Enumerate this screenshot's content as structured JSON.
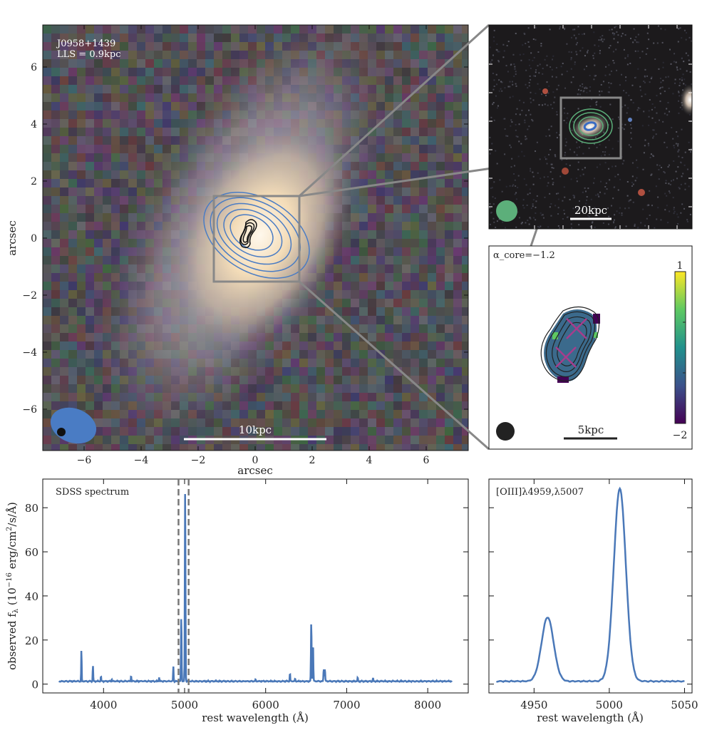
{
  "chart_data": [
    {
      "type": "image",
      "name": "optical-image",
      "annotations": [
        "J0958+1439",
        "LLS = 0.9kpc"
      ],
      "scalebar_label": "10kpc",
      "xlabel": "arcsec",
      "ylabel": "arcsec",
      "xlim": [
        -7.5,
        7.5
      ],
      "ylim": [
        -7.5,
        7.5
      ],
      "xticks": [
        -6,
        -4,
        -2,
        0,
        2,
        4,
        6
      ],
      "yticks": [
        -6,
        -4,
        -2,
        0,
        2,
        4,
        6
      ],
      "zoom_box": [
        -1.5,
        1.5,
        -1.5,
        1.5
      ]
    },
    {
      "type": "image",
      "name": "wide-field-image",
      "scalebar_label": "20kpc"
    },
    {
      "type": "heatmap",
      "name": "spectral-index-map",
      "annotation": "α_core=−1.2",
      "annotation_main": "α",
      "annotation_sub": "core",
      "annotation_value": "=−1.2",
      "scalebar_label": "5kpc",
      "colorbar": {
        "min_label": "−2",
        "max_label": "1",
        "range": [
          -2,
          1
        ],
        "colormap": "viridis"
      }
    },
    {
      "type": "line",
      "name": "sdss-spectrum",
      "title": "SDSS spectrum",
      "xlabel": "rest wavelength (Å)",
      "ylabel": "observed f_λ (10^-16 erg/cm²/s/Å)",
      "ylabel_text": "observed f",
      "xlim": [
        3250,
        8500
      ],
      "ylim": [
        -4,
        93
      ],
      "xticks": [
        4000,
        5000,
        6000,
        7000,
        8000
      ],
      "yticks": [
        0,
        20,
        40,
        60,
        80
      ],
      "continuum": 1.3,
      "x_range": [
        3450,
        8300
      ],
      "dashed_lines": [
        4925,
        5050
      ],
      "lines": [
        {
          "center": 3727,
          "amp": 14.5,
          "sigma": 3
        },
        {
          "center": 3869,
          "amp": 7.2,
          "sigma": 3
        },
        {
          "center": 3968,
          "amp": 2.3,
          "sigma": 3
        },
        {
          "center": 4101,
          "amp": 1.0,
          "sigma": 3
        },
        {
          "center": 4340,
          "amp": 2.6,
          "sigma": 3
        },
        {
          "center": 4686,
          "amp": 1.8,
          "sigma": 3
        },
        {
          "center": 4861,
          "amp": 7.0,
          "sigma": 3
        },
        {
          "center": 4959,
          "amp": 29,
          "sigma": 4
        },
        {
          "center": 5007,
          "amp": 87.5,
          "sigma": 4
        },
        {
          "center": 5876,
          "amp": 0.8,
          "sigma": 3
        },
        {
          "center": 6300,
          "amp": 3.7,
          "sigma": 3
        },
        {
          "center": 6364,
          "amp": 1.2,
          "sigma": 3
        },
        {
          "center": 6563,
          "amp": 26.5,
          "sigma": 4
        },
        {
          "center": 6584,
          "amp": 17,
          "sigma": 4
        },
        {
          "center": 6717,
          "amp": 5.5,
          "sigma": 4
        },
        {
          "center": 6731,
          "amp": 5.5,
          "sigma": 4
        },
        {
          "center": 7136,
          "amp": 1.8,
          "sigma": 3
        },
        {
          "center": 7325,
          "amp": 1.5,
          "sigma": 3
        }
      ],
      "color": "#4a78b8"
    },
    {
      "type": "line",
      "name": "oiii-zoom-spectrum",
      "title": "[OIII]λ4959,λ5007",
      "xlabel": "rest wavelength (Å)",
      "xlim": [
        4920,
        5055
      ],
      "ylim": [
        -4,
        93
      ],
      "xticks": [
        4950,
        5000,
        5050
      ],
      "x_range": [
        4925,
        5050
      ],
      "color": "#4a78b8"
    }
  ]
}
